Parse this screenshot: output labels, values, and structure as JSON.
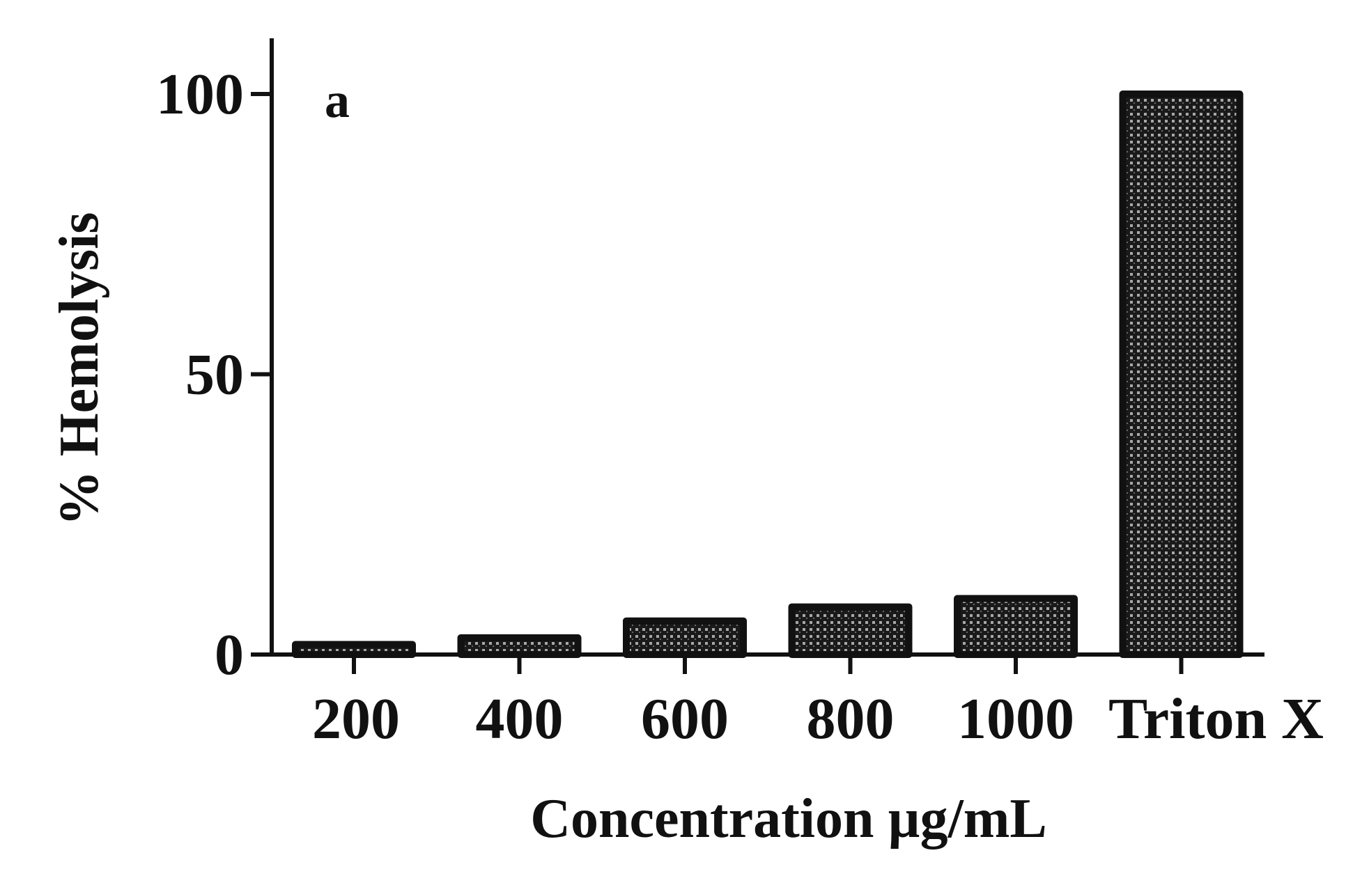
{
  "chart_data": {
    "type": "bar",
    "panel_label": "a",
    "categories": [
      "200",
      "400",
      "600",
      "800",
      "1000",
      "Triton X"
    ],
    "values": [
      1.8,
      3.0,
      6.0,
      8.5,
      10.0,
      100
    ],
    "xlabel": "Concentration µg/mL",
    "ylabel": "% Hemolysis",
    "ylim": [
      0,
      100
    ],
    "yticks": [
      0,
      50,
      100
    ],
    "grid": false,
    "legend": "none",
    "bar_fill": "cross-hatched dark grey",
    "colors": {
      "bar_dark": "#111111",
      "bar_light": "#9a9a9a",
      "axis": "#111111",
      "text": "#111111"
    }
  }
}
